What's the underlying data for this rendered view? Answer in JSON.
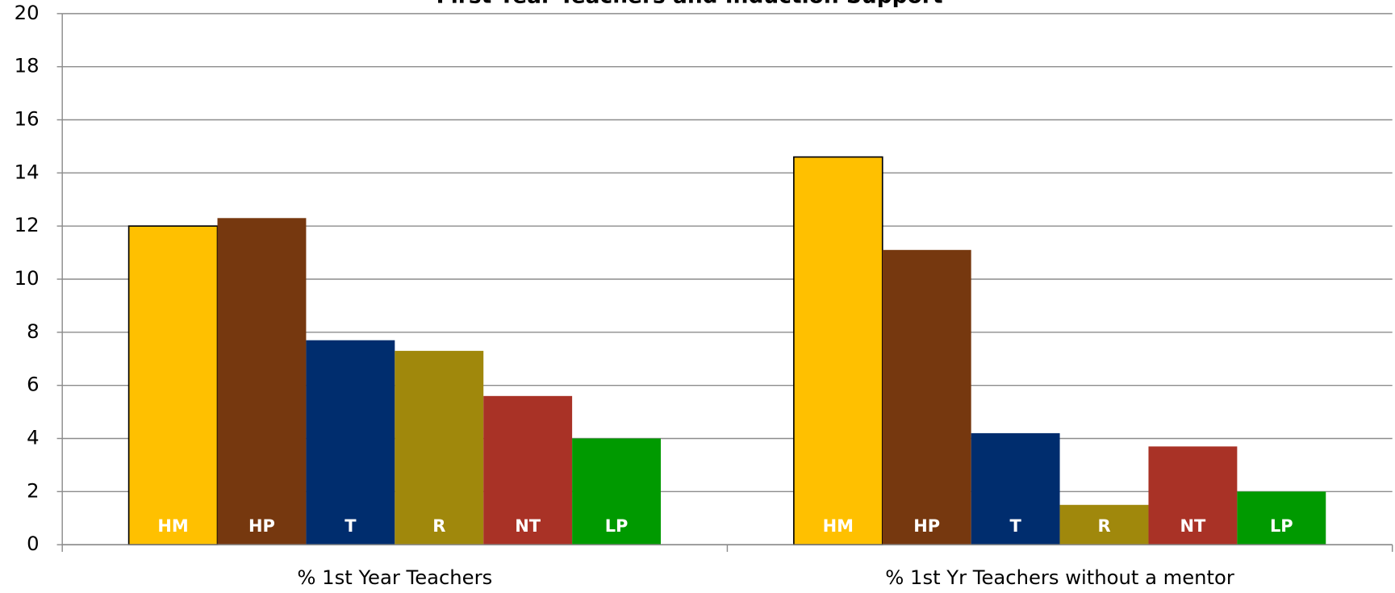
{
  "chart_data": {
    "type": "bar",
    "title": "First Year Teachers and Induction Support",
    "categories": [
      "% 1st Year Teachers",
      "% 1st Yr Teachers without a mentor"
    ],
    "series": [
      {
        "name": "HM",
        "color": "#FFC000",
        "values": [
          12,
          14.6
        ]
      },
      {
        "name": "HP",
        "color": "#76380F",
        "values": [
          12.3,
          11.1
        ]
      },
      {
        "name": "T",
        "color": "#002D6E",
        "values": [
          7.7,
          4.2
        ]
      },
      {
        "name": "R",
        "color": "#A0880C",
        "values": [
          7.3,
          1.5
        ]
      },
      {
        "name": "NT",
        "color": "#A93226",
        "values": [
          5.6,
          3.7
        ]
      },
      {
        "name": "LP",
        "color": "#009A00",
        "values": [
          4.0,
          2.0
        ]
      }
    ],
    "ylim": [
      0,
      20
    ],
    "yticks": [
      0,
      2,
      4,
      6,
      8,
      10,
      12,
      14,
      16,
      18,
      20
    ],
    "grid": true
  }
}
